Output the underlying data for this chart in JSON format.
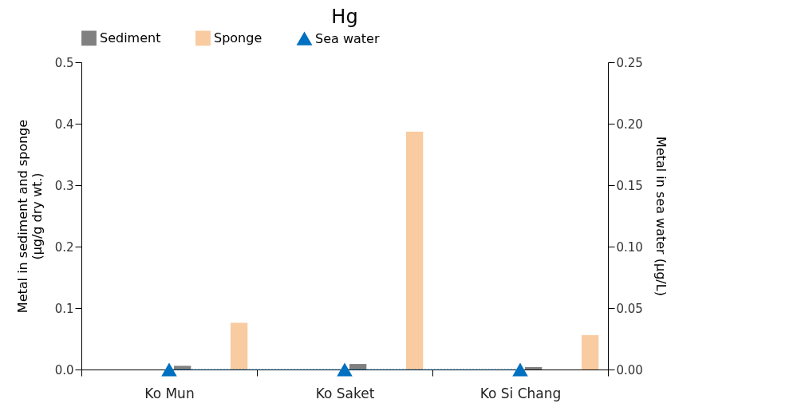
{
  "chart_data": {
    "type": "bar",
    "title": "Hg",
    "ylabel": "Metal in sediment and sponge\n(µg/g dry wt.)",
    "y2label": "Metal in sea water (µg/L)",
    "categories": [
      "Ko Mun",
      "Ko Saket",
      "Ko Si Chang"
    ],
    "series": [
      {
        "name": "Sediment",
        "color": "#808080",
        "values": [
          0.006,
          0.009,
          0.004
        ]
      },
      {
        "name": "Sponge",
        "color": "#f8cba0",
        "values": [
          0.076,
          0.387,
          0.056
        ]
      },
      {
        "name": "Sea water",
        "type": "line",
        "axis": "y2",
        "color": "#0070c0",
        "marker": "triangle",
        "line_style": "dotted",
        "values": [
          0,
          0,
          0
        ]
      }
    ],
    "ylim": [
      0,
      0.5
    ],
    "yticks": [
      {
        "value": 0,
        "label": "0.0"
      },
      0.1,
      0.2,
      0.3,
      0.4,
      0.5
    ],
    "y2lim": [
      0,
      0.25
    ],
    "y2ticks": [
      {
        "value": 0,
        "label": "0.00"
      },
      0.05,
      {
        "value": 0.1,
        "label": "0.10"
      },
      0.15,
      {
        "value": 0.2,
        "label": "0.20"
      },
      0.25
    ],
    "legend": "top",
    "grid": false
  }
}
